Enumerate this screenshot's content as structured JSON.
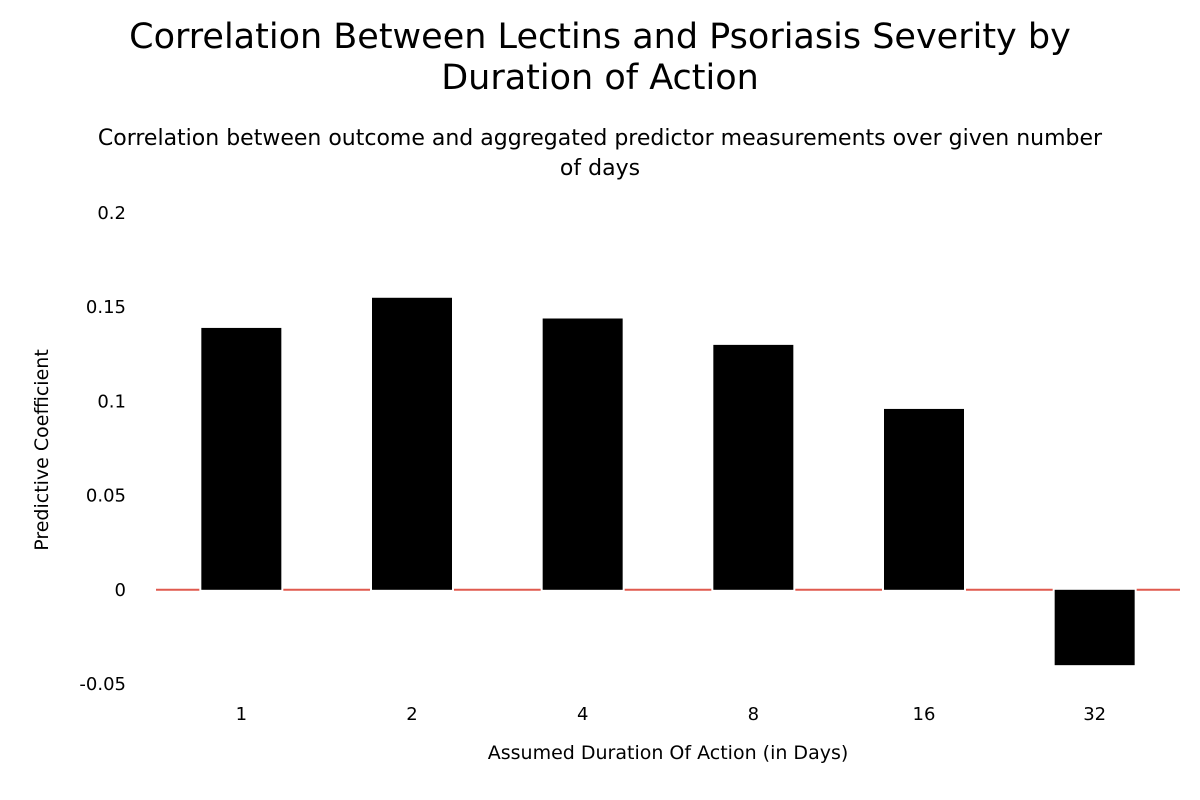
{
  "chart_data": {
    "type": "bar",
    "title": [
      "Correlation Between Lectins and Psoriasis Severity by",
      "Duration of Action"
    ],
    "subtitle": [
      "Correlation between outcome and aggregated predictor measurements over given number",
      "of days"
    ],
    "xlabel": "Assumed Duration Of Action (in Days)",
    "ylabel": "Predictive Coefficient",
    "categories": [
      "1",
      "2",
      "4",
      "8",
      "16",
      "32"
    ],
    "values": [
      0.139,
      0.155,
      0.144,
      0.13,
      0.096,
      -0.04
    ],
    "ylim": [
      -0.05,
      0.2
    ],
    "yticks": [
      -0.05,
      0,
      0.05,
      0.1,
      0.15,
      0.2
    ],
    "ytick_labels": [
      "-0.05",
      "0",
      "0.05",
      "0.1",
      "0.15",
      "0.2"
    ],
    "grid": false,
    "legend": "none",
    "bar_color": "#000000",
    "zero_line_color": "#e05a4f"
  }
}
